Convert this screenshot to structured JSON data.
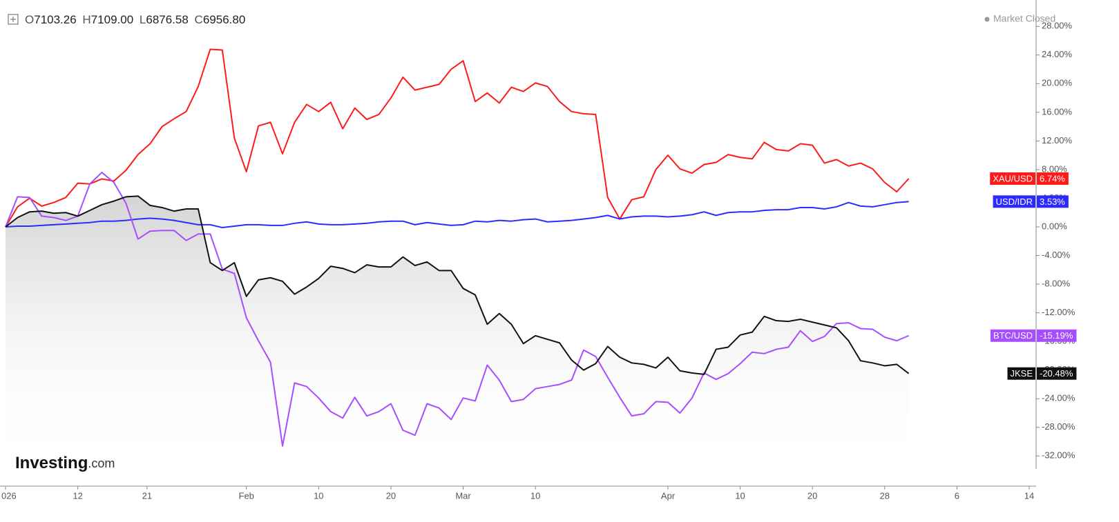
{
  "header": {
    "ohlc": [
      {
        "key": "O",
        "value": "7103.26"
      },
      {
        "key": "H",
        "value": "7109.00"
      },
      {
        "key": "L",
        "value": "6876.58"
      },
      {
        "key": "C",
        "value": "6956.80"
      }
    ],
    "status": "Market Closed",
    "logo": {
      "name": "Investing",
      "suffix": ".com"
    }
  },
  "chart_data": {
    "type": "line",
    "x": [
      0,
      1,
      2,
      3,
      4,
      5,
      6,
      7,
      8,
      9,
      10,
      11,
      12,
      13,
      14,
      15,
      16,
      17,
      18,
      19,
      20,
      21,
      22,
      23,
      24,
      25,
      26,
      27,
      28,
      29,
      30,
      31,
      32,
      33,
      34,
      35,
      36,
      37,
      38,
      39,
      40,
      41,
      42,
      43,
      44,
      45,
      46,
      47,
      48,
      49,
      50,
      51,
      52,
      53,
      54,
      55,
      56,
      57,
      58,
      59,
      60,
      61,
      62,
      63,
      64,
      65,
      66,
      67,
      68,
      69,
      70,
      71,
      72,
      73,
      74,
      75
    ],
    "xlim": [
      0,
      85
    ],
    "xticks": [
      {
        "value": 0,
        "label": "026"
      },
      {
        "value": 6,
        "label": "12"
      },
      {
        "value": 11.75,
        "label": "21"
      },
      {
        "value": 20,
        "label": "Feb"
      },
      {
        "value": 26,
        "label": "10"
      },
      {
        "value": 32,
        "label": "20"
      },
      {
        "value": 38,
        "label": "Mar"
      },
      {
        "value": 44,
        "label": "10"
      },
      {
        "value": 55,
        "label": "Apr"
      },
      {
        "value": 61,
        "label": "10"
      },
      {
        "value": 67,
        "label": "20"
      },
      {
        "value": 73,
        "label": "28"
      },
      {
        "value": 79,
        "label": "6"
      },
      {
        "value": 85,
        "label": "14"
      }
    ],
    "ylim": [
      -33.8,
      31.2
    ],
    "yticks": [
      {
        "value": 28,
        "label": "28.00%"
      },
      {
        "value": 24,
        "label": "24.00%"
      },
      {
        "value": 20,
        "label": "20.00%"
      },
      {
        "value": 16,
        "label": "16.00%"
      },
      {
        "value": 12,
        "label": "12.00%"
      },
      {
        "value": 8,
        "label": "8.00%"
      },
      {
        "value": 4,
        "label": "4.00%"
      },
      {
        "value": 0,
        "label": "0.00%"
      },
      {
        "value": -4,
        "label": "-4.00%"
      },
      {
        "value": -8,
        "label": "-8.00%"
      },
      {
        "value": -12,
        "label": "-12.00%"
      },
      {
        "value": -16,
        "label": "-16.00%"
      },
      {
        "value": -20,
        "label": "-20.00%"
      },
      {
        "value": -24,
        "label": "-24.00%"
      },
      {
        "value": -28,
        "label": "-28.00%"
      },
      {
        "value": -32,
        "label": "-32.00%"
      }
    ],
    "y_axis_side": "right",
    "grid": false,
    "series": [
      {
        "name": "XAU/USD",
        "color": "#ff1a1a",
        "values": [
          0,
          2.8,
          4.0,
          2.9,
          3.4,
          4.1,
          6.1,
          6.0,
          6.7,
          6.4,
          7.9,
          10.1,
          11.6,
          14.0,
          15.1,
          16.1,
          19.6,
          24.8,
          24.7,
          12.4,
          7.7,
          14.1,
          14.6,
          10.2,
          14.6,
          17.1,
          16.1,
          17.4,
          13.7,
          16.6,
          15.0,
          15.7,
          18.0,
          20.9,
          19.1,
          19.5,
          19.9,
          22.0,
          23.2,
          17.5,
          18.7,
          17.3,
          19.5,
          18.9,
          20.1,
          19.6,
          17.5,
          16.1,
          15.8,
          15.7,
          4.1,
          1.1,
          3.8,
          4.2,
          8.0,
          10.0,
          8.1,
          7.5,
          8.7,
          9.0,
          10.1,
          9.7,
          9.5,
          11.8,
          10.8,
          10.6,
          11.6,
          11.4,
          8.9,
          9.4,
          8.5,
          8.9,
          8.1,
          6.2,
          4.9,
          6.74
        ],
        "value_labels": [
          null,
          null,
          null,
          null,
          null,
          null,
          null,
          null,
          null,
          null,
          null,
          null,
          null,
          null,
          null,
          null,
          null,
          null,
          null,
          null,
          null,
          null,
          null,
          null,
          null,
          null,
          null,
          null,
          null,
          null,
          null,
          null,
          null,
          null,
          null,
          null,
          null,
          null,
          null,
          null,
          null,
          null,
          null,
          null,
          null,
          null,
          null,
          null,
          null,
          null,
          null,
          null,
          null,
          null,
          null,
          null,
          null,
          null,
          null,
          null,
          null,
          null,
          null,
          null,
          null,
          null,
          null,
          null,
          null,
          null,
          null,
          null,
          null,
          null,
          null,
          "6.74%"
        ]
      },
      {
        "name": "USD/IDR",
        "color": "#2b2bff",
        "values": [
          0,
          0.1,
          0.1,
          0.2,
          0.3,
          0.4,
          0.5,
          0.6,
          0.8,
          0.8,
          0.9,
          1.1,
          1.2,
          1.1,
          0.9,
          0.6,
          0.3,
          0.3,
          -0.1,
          0.1,
          0.3,
          0.3,
          0.2,
          0.2,
          0.5,
          0.7,
          0.4,
          0.3,
          0.3,
          0.4,
          0.5,
          0.7,
          0.8,
          0.8,
          0.3,
          0.6,
          0.4,
          0.2,
          0.3,
          0.8,
          0.7,
          0.9,
          0.8,
          1.0,
          1.1,
          0.7,
          0.8,
          0.9,
          1.1,
          1.3,
          1.6,
          1.1,
          1.4,
          1.5,
          1.5,
          1.4,
          1.5,
          1.7,
          2.1,
          1.6,
          2.0,
          2.1,
          2.1,
          2.3,
          2.4,
          2.4,
          2.7,
          2.7,
          2.5,
          2.8,
          3.4,
          2.9,
          2.8,
          3.1,
          3.4,
          3.53
        ],
        "value_labels": [
          null,
          null,
          null,
          null,
          null,
          null,
          null,
          null,
          null,
          null,
          null,
          null,
          null,
          null,
          null,
          null,
          null,
          null,
          null,
          null,
          null,
          null,
          null,
          null,
          null,
          null,
          null,
          null,
          null,
          null,
          null,
          null,
          null,
          null,
          null,
          null,
          null,
          null,
          null,
          null,
          null,
          null,
          null,
          null,
          null,
          null,
          null,
          null,
          null,
          null,
          null,
          null,
          null,
          null,
          null,
          null,
          null,
          null,
          null,
          null,
          null,
          null,
          null,
          null,
          null,
          null,
          null,
          null,
          null,
          null,
          null,
          null,
          null,
          null,
          null,
          "3.53%"
        ]
      },
      {
        "name": "BTC/USD",
        "color": "#a64dff",
        "values": [
          0,
          4.2,
          4.1,
          1.5,
          1.3,
          0.9,
          1.5,
          6.0,
          7.6,
          6.2,
          3.3,
          -1.7,
          -0.6,
          -0.5,
          -0.5,
          -1.9,
          -1.0,
          -1.0,
          -5.9,
          -6.5,
          -12.7,
          -15.9,
          -18.9,
          -30.6,
          -21.8,
          -22.3,
          -23.9,
          -25.8,
          -26.7,
          -23.8,
          -26.4,
          -25.8,
          -24.7,
          -28.4,
          -29.1,
          -24.7,
          -25.3,
          -26.9,
          -23.9,
          -24.3,
          -19.3,
          -21.4,
          -24.4,
          -24.1,
          -22.6,
          -22.3,
          -22.0,
          -21.4,
          -17.2,
          -18.1,
          -21.0,
          -23.8,
          -26.4,
          -26.1,
          -24.4,
          -24.5,
          -26.0,
          -23.9,
          -20.4,
          -21.3,
          -20.5,
          -19.1,
          -17.5,
          -17.7,
          -17.1,
          -16.8,
          -14.5,
          -16.0,
          -15.3,
          -13.5,
          -13.4,
          -14.2,
          -14.3,
          -15.4,
          -15.9,
          -15.19
        ],
        "value_labels": [
          null,
          null,
          null,
          null,
          null,
          null,
          null,
          null,
          null,
          null,
          null,
          null,
          null,
          null,
          null,
          null,
          null,
          null,
          null,
          null,
          null,
          null,
          null,
          null,
          null,
          null,
          null,
          null,
          null,
          null,
          null,
          null,
          null,
          null,
          null,
          null,
          null,
          null,
          null,
          null,
          null,
          null,
          null,
          null,
          null,
          null,
          null,
          null,
          null,
          null,
          null,
          null,
          null,
          null,
          null,
          null,
          null,
          null,
          null,
          null,
          null,
          null,
          null,
          null,
          null,
          null,
          null,
          null,
          null,
          null,
          null,
          null,
          null,
          null,
          null,
          "-15.19%"
        ]
      },
      {
        "name": "JKSE",
        "color": "#111111",
        "area": true,
        "values": [
          0,
          1.3,
          2.1,
          2.2,
          1.9,
          2.0,
          1.5,
          2.3,
          3.1,
          3.6,
          4.2,
          4.3,
          3.0,
          2.7,
          2.2,
          2.5,
          2.5,
          -5.0,
          -6.1,
          -5.0,
          -9.7,
          -7.4,
          -7.1,
          -7.6,
          -9.4,
          -8.4,
          -7.2,
          -5.5,
          -5.8,
          -6.4,
          -5.3,
          -5.6,
          -5.6,
          -4.2,
          -5.4,
          -4.9,
          -6.1,
          -6.1,
          -8.6,
          -9.5,
          -13.6,
          -12.1,
          -13.6,
          -16.3,
          -15.2,
          -15.7,
          -16.2,
          -18.6,
          -20.0,
          -19.1,
          -16.7,
          -18.2,
          -19.0,
          -19.2,
          -19.7,
          -18.2,
          -20.1,
          -20.4,
          -20.6,
          -17.1,
          -16.8,
          -15.1,
          -14.7,
          -12.5,
          -13.1,
          -13.2,
          -12.9,
          -13.3,
          -13.7,
          -14.1,
          -15.9,
          -18.7,
          -19.0,
          -19.4,
          -19.2,
          -20.48
        ],
        "value_labels": [
          null,
          null,
          null,
          null,
          null,
          null,
          null,
          null,
          null,
          null,
          null,
          null,
          null,
          null,
          null,
          null,
          null,
          null,
          null,
          null,
          null,
          null,
          null,
          null,
          null,
          null,
          null,
          null,
          null,
          null,
          null,
          null,
          null,
          null,
          null,
          null,
          null,
          null,
          null,
          null,
          null,
          null,
          null,
          null,
          null,
          null,
          null,
          null,
          null,
          null,
          null,
          null,
          null,
          null,
          null,
          null,
          null,
          null,
          null,
          null,
          null,
          null,
          null,
          null,
          null,
          null,
          null,
          null,
          null,
          null,
          null,
          null,
          null,
          null,
          null,
          "-20.48%"
        ]
      }
    ]
  }
}
